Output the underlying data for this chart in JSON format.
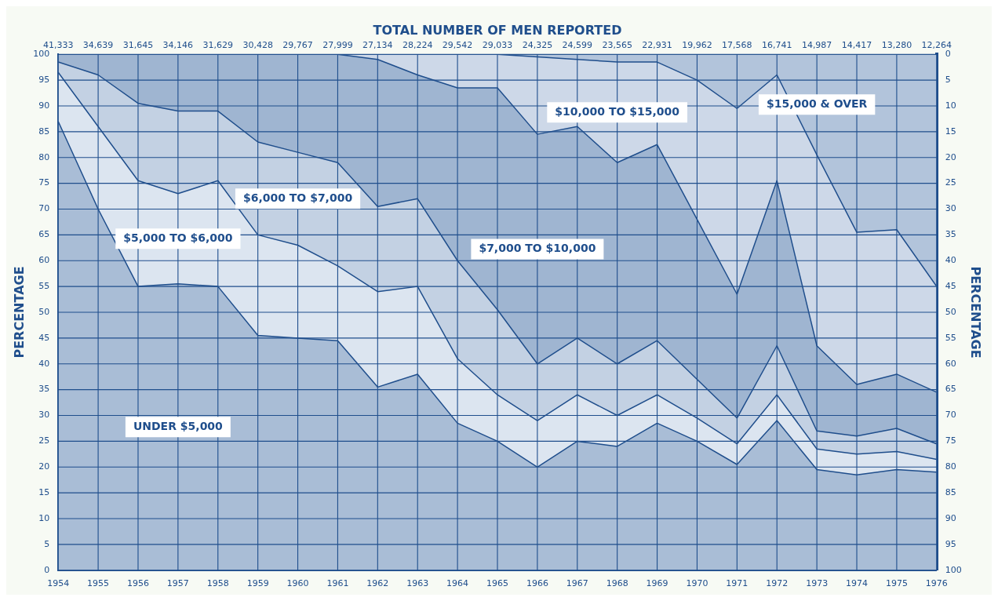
{
  "chart_data": {
    "type": "area",
    "stacked": true,
    "title": "TOTAL NUMBER OF MEN REPORTED",
    "ylabel": "PERCENTAGE",
    "y2label": "PERCENTAGE",
    "x": [
      1954,
      1955,
      1956,
      1957,
      1958,
      1959,
      1960,
      1961,
      1962,
      1963,
      1964,
      1965,
      1966,
      1967,
      1968,
      1969,
      1970,
      1971,
      1972,
      1973,
      1974,
      1975,
      1976
    ],
    "xlim": [
      1954,
      1976
    ],
    "xticks": [
      1954,
      1955,
      1956,
      1957,
      1958,
      1959,
      1960,
      1961,
      1962,
      1963,
      1964,
      1965,
      1966,
      1967,
      1968,
      1969,
      1970,
      1971,
      1972,
      1973,
      1974,
      1975,
      1976
    ],
    "annotations": [
      "41,333",
      "34,639",
      "31,645",
      "34,146",
      "31,629",
      "30,428",
      "29,767",
      "27,999",
      "27,134",
      "28,224",
      "29,542",
      "29,033",
      "24,325",
      "24,599",
      "23,565",
      "22,931",
      "19,962",
      "17,568",
      "16,741",
      "14,987",
      "14,417",
      "13,280",
      "12,264"
    ],
    "ylim": [
      0,
      100
    ],
    "yticks": [
      0,
      5,
      10,
      15,
      20,
      25,
      30,
      35,
      40,
      45,
      50,
      55,
      60,
      65,
      70,
      75,
      80,
      85,
      90,
      95,
      100
    ],
    "y2lim": [
      100,
      0
    ],
    "y2ticks": [
      0,
      5,
      10,
      15,
      20,
      25,
      30,
      35,
      40,
      45,
      50,
      55,
      60,
      65,
      70,
      75,
      80,
      85,
      90,
      95,
      100
    ],
    "grid": true,
    "legend": false,
    "marker": "none",
    "series": [
      {
        "name": "UNDER $5,000",
        "color": "#a9bdd6",
        "values": [
          87,
          70,
          55,
          55.5,
          55,
          45.5,
          45,
          44.5,
          35.5,
          38,
          28.5,
          25,
          20,
          25,
          24,
          28.5,
          25,
          20.5,
          29,
          19.5,
          18.5,
          19.5,
          19
        ]
      },
      {
        "name": "$5,000 TO $6,000",
        "color": "#dce5f0",
        "values": [
          9.5,
          16,
          20.5,
          17.5,
          20.5,
          19.5,
          18,
          14.5,
          18.5,
          17,
          12.5,
          9,
          9,
          9,
          6,
          5.5,
          4.5,
          4,
          5,
          4,
          4,
          3.5,
          2.5
        ]
      },
      {
        "name": "$6,000 TO $7,000",
        "color": "#c3d1e3",
        "values": [
          2,
          10,
          15,
          16,
          13.5,
          18,
          18,
          20,
          16.5,
          17,
          19,
          16.5,
          11,
          11,
          10,
          10.5,
          7.5,
          5,
          9.5,
          3.5,
          3.5,
          4.5,
          3
        ]
      },
      {
        "name": "$7,000 TO $10,000",
        "color": "#9fb5d1",
        "values": [
          1.5,
          4,
          9.5,
          11,
          11,
          17,
          19,
          21,
          28.5,
          24,
          33.5,
          43,
          44.5,
          41,
          39,
          38,
          31,
          24,
          32,
          16.5,
          10,
          10.5,
          10
        ]
      },
      {
        "name": "$10,000 TO $15,000",
        "color": "#cdd8e8",
        "values": [
          0,
          0,
          0,
          0,
          0,
          0,
          0,
          0,
          1,
          4,
          6.5,
          6.5,
          15,
          13,
          19.5,
          16,
          27,
          36,
          20.5,
          37,
          29.5,
          28,
          20.5
        ]
      },
      {
        "name": "$15,000 & OVER",
        "color": "#b2c4db",
        "values": [
          0,
          0,
          0,
          0,
          0,
          0,
          0,
          0,
          0,
          0,
          0,
          0,
          0.5,
          1,
          1.5,
          1.5,
          5,
          10.5,
          4,
          19.5,
          34.5,
          34,
          45
        ]
      }
    ]
  }
}
